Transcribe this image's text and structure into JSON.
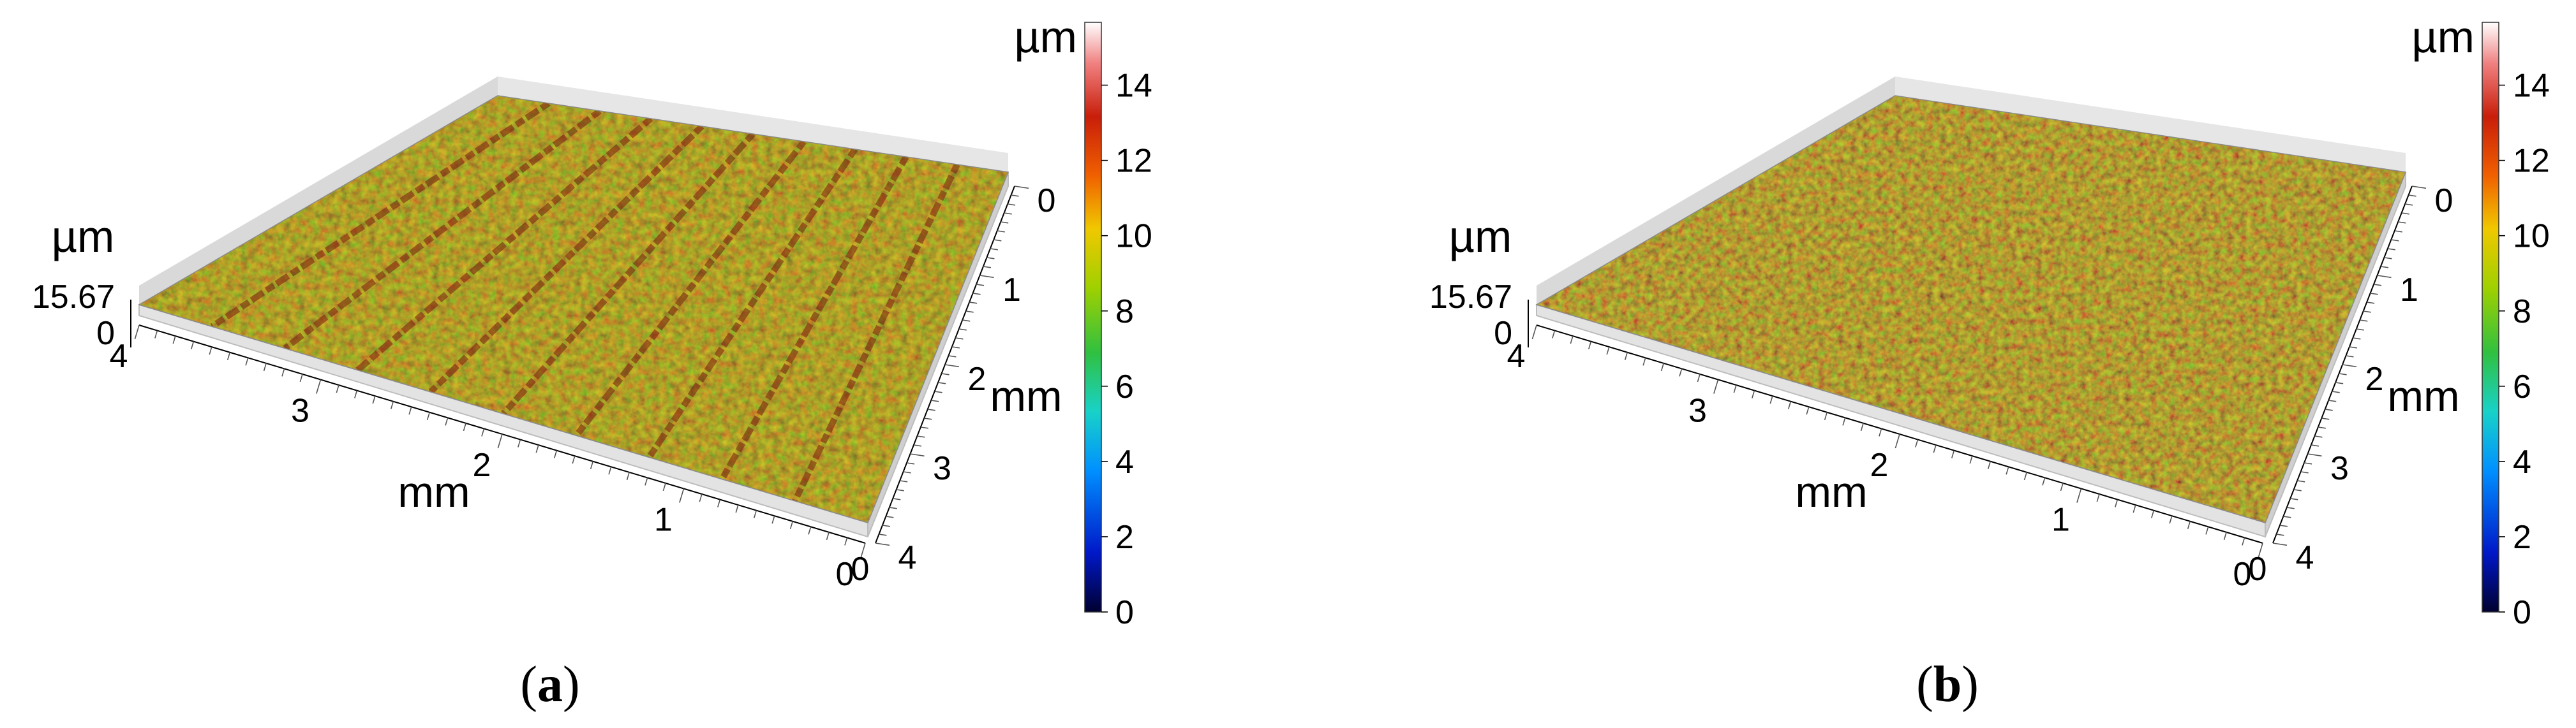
{
  "chart_data": [
    {
      "type": "surface3d",
      "panel_label": "a",
      "title": "",
      "x_axis": {
        "label": "mm",
        "ticks": [
          "0",
          "1",
          "2",
          "3",
          "4"
        ],
        "range": [
          0,
          4
        ]
      },
      "y_axis": {
        "label": "mm",
        "ticks": [
          "0",
          "1",
          "2",
          "3",
          "4"
        ],
        "range": [
          0,
          4
        ]
      },
      "z_axis": {
        "unit": "µm",
        "ticks": [
          "0",
          "15.67"
        ],
        "range": [
          0,
          15.67
        ]
      },
      "colorbar": {
        "unit": "µm",
        "ticks": [
          "0",
          "2",
          "4",
          "6",
          "8",
          "10",
          "12",
          "14"
        ],
        "range": [
          0,
          15.67
        ]
      },
      "surface": {
        "pattern": "parallel grooves",
        "groove_count": 9
      }
    },
    {
      "type": "surface3d",
      "panel_label": "b",
      "title": "",
      "x_axis": {
        "label": "mm",
        "ticks": [
          "0",
          "1",
          "2",
          "3",
          "4"
        ],
        "range": [
          0,
          4
        ]
      },
      "y_axis": {
        "label": "mm",
        "ticks": [
          "0",
          "1",
          "2",
          "3",
          "4"
        ],
        "range": [
          0,
          4
        ]
      },
      "z_axis": {
        "unit": "µm",
        "ticks": [
          "0",
          "15.67"
        ],
        "range": [
          0,
          15.67
        ]
      },
      "colorbar": {
        "unit": "µm",
        "ticks": [
          "0",
          "2",
          "4",
          "6",
          "8",
          "10",
          "12",
          "14"
        ],
        "range": [
          0,
          15.67
        ]
      },
      "surface": {
        "pattern": "uniform rough",
        "groove_count": 0
      }
    }
  ],
  "colormap": [
    "#000030",
    "#0018c8",
    "#0090ff",
    "#18d2c8",
    "#30c040",
    "#a0d000",
    "#f0c800",
    "#f06000",
    "#c81e0a",
    "#f08080",
    "#ffffff"
  ],
  "captions": [
    {
      "open": "(",
      "label": "a",
      "close": ")"
    },
    {
      "open": "(",
      "label": "b",
      "close": ")"
    }
  ]
}
